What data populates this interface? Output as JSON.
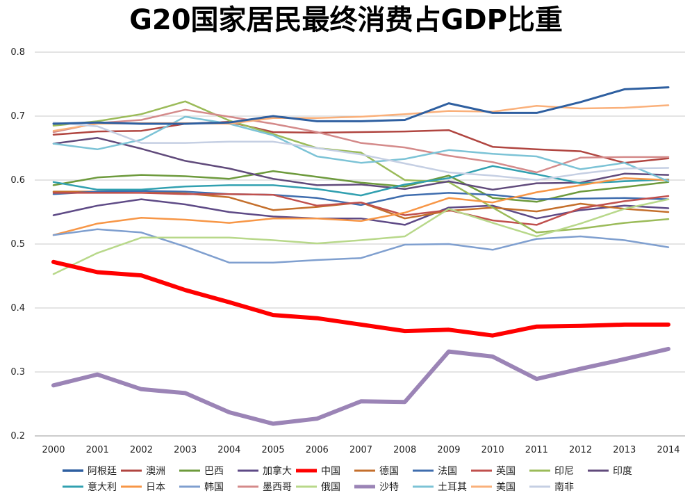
{
  "chart_data": {
    "type": "line",
    "title": "G20国家居民最终消费占GDP比重",
    "xlabel": "",
    "ylabel": "",
    "x": [
      "2000",
      "2001",
      "2002",
      "2003",
      "2004",
      "2005",
      "2006",
      "2007",
      "2008",
      "2009",
      "2010",
      "2011",
      "2012",
      "2013",
      "2014"
    ],
    "ylim": [
      0.2,
      0.8
    ],
    "yticks": [
      "0.2",
      "0.3",
      "0.4",
      "0.5",
      "0.6",
      "0.7",
      "0.8"
    ],
    "grid": "horizontal",
    "legend_position": "bottom",
    "series": [
      {
        "name": "阿根廷",
        "color": "#2E5FA0",
        "width": 3,
        "values": [
          0.688,
          0.69,
          0.688,
          0.688,
          0.69,
          0.7,
          0.692,
          0.692,
          0.694,
          0.72,
          0.705,
          0.705,
          0.722,
          0.742,
          0.745
        ]
      },
      {
        "name": "澳洲",
        "color": "#B04540",
        "width": 2.5,
        "values": [
          0.671,
          0.676,
          0.677,
          0.688,
          0.691,
          0.675,
          0.674,
          0.675,
          0.676,
          0.678,
          0.652,
          0.648,
          0.645,
          0.627,
          0.634
        ]
      },
      {
        "name": "巴西",
        "color": "#6D9A3C",
        "width": 2.5,
        "values": [
          0.592,
          0.604,
          0.608,
          0.606,
          0.602,
          0.614,
          0.605,
          0.596,
          0.59,
          0.607,
          0.572,
          0.566,
          0.582,
          0.589,
          0.597
        ]
      },
      {
        "name": "加拿大",
        "color": "#5E4A86",
        "width": 2.5,
        "values": [
          0.545,
          0.56,
          0.57,
          0.562,
          0.55,
          0.543,
          0.54,
          0.54,
          0.53,
          0.557,
          0.56,
          0.54,
          0.553,
          0.56,
          0.556
        ]
      },
      {
        "name": "中国",
        "color": "#FF0000",
        "width": 6,
        "values": [
          0.472,
          0.456,
          0.451,
          0.428,
          0.409,
          0.389,
          0.384,
          0.374,
          0.364,
          0.366,
          0.357,
          0.371,
          0.372,
          0.374,
          0.374
        ]
      },
      {
        "name": "德国",
        "color": "#C46F2C",
        "width": 2.5,
        "values": [
          0.582,
          0.582,
          0.583,
          0.579,
          0.573,
          0.553,
          0.558,
          0.565,
          0.54,
          0.552,
          0.557,
          0.551,
          0.563,
          0.555,
          0.55
        ]
      },
      {
        "name": "法国",
        "color": "#3F6DAE",
        "width": 2.5,
        "values": [
          0.578,
          0.582,
          0.583,
          0.582,
          0.578,
          0.577,
          0.572,
          0.561,
          0.576,
          0.58,
          0.577,
          0.57,
          0.571,
          0.572,
          0.57
        ]
      },
      {
        "name": "英国",
        "color": "#C0504D",
        "width": 2.5,
        "values": [
          0.58,
          0.58,
          0.58,
          0.578,
          0.578,
          0.577,
          0.56,
          0.565,
          0.545,
          0.553,
          0.537,
          0.53,
          0.556,
          0.567,
          0.575
        ]
      },
      {
        "name": "印尼",
        "color": "#9BBB59",
        "width": 2.5,
        "values": [
          0.685,
          0.692,
          0.703,
          0.723,
          0.693,
          0.672,
          0.65,
          0.643,
          0.6,
          0.597,
          0.557,
          0.518,
          0.524,
          0.533,
          0.539
        ]
      },
      {
        "name": "印度",
        "color": "#604A7B",
        "width": 2.5,
        "values": [
          0.657,
          0.666,
          0.649,
          0.63,
          0.618,
          0.602,
          0.592,
          0.593,
          0.586,
          0.598,
          0.585,
          0.595,
          0.596,
          0.61,
          0.608
        ]
      },
      {
        "name": "意大利",
        "color": "#31A0B0",
        "width": 2.5,
        "values": [
          0.597,
          0.585,
          0.585,
          0.59,
          0.592,
          0.592,
          0.586,
          0.576,
          0.593,
          0.603,
          0.622,
          0.609,
          0.595,
          0.598,
          0.601
        ]
      },
      {
        "name": "日本",
        "color": "#F79646",
        "width": 2.5,
        "values": [
          0.514,
          0.532,
          0.541,
          0.538,
          0.533,
          0.54,
          0.54,
          0.536,
          0.549,
          0.572,
          0.565,
          0.581,
          0.592,
          0.603,
          0.6
        ]
      },
      {
        "name": "韩国",
        "color": "#7F9FCF",
        "width": 2.5,
        "values": [
          0.514,
          0.523,
          0.518,
          0.496,
          0.471,
          0.471,
          0.475,
          0.478,
          0.499,
          0.5,
          0.491,
          0.508,
          0.512,
          0.506,
          0.495
        ]
      },
      {
        "name": "墨西哥",
        "color": "#D48A8A",
        "width": 2.5,
        "values": [
          0.675,
          0.689,
          0.694,
          0.71,
          0.699,
          0.688,
          0.675,
          0.658,
          0.651,
          0.638,
          0.628,
          0.612,
          0.635,
          0.636,
          0.636
        ]
      },
      {
        "name": "俄国",
        "color": "#B8D88A",
        "width": 2.5,
        "values": [
          0.453,
          0.486,
          0.51,
          0.51,
          0.51,
          0.506,
          0.501,
          0.506,
          0.512,
          0.555,
          0.533,
          0.512,
          0.532,
          0.555,
          0.57
        ]
      },
      {
        "name": "沙特",
        "color": "#9B84B6",
        "width": 6,
        "values": [
          0.279,
          0.296,
          0.273,
          0.267,
          0.237,
          0.219,
          0.227,
          0.254,
          0.253,
          0.332,
          0.324,
          0.289,
          0.305,
          0.32,
          0.336
        ]
      },
      {
        "name": "土耳其",
        "color": "#7CC3D6",
        "width": 2.5,
        "values": [
          0.657,
          0.648,
          0.663,
          0.699,
          0.688,
          0.67,
          0.637,
          0.627,
          0.633,
          0.647,
          0.641,
          0.637,
          0.617,
          0.627,
          0.598
        ]
      },
      {
        "name": "美国",
        "color": "#FAB07A",
        "width": 2.5,
        "values": [
          0.677,
          0.688,
          0.689,
          0.689,
          0.688,
          0.697,
          0.697,
          0.699,
          0.703,
          0.708,
          0.707,
          0.716,
          0.712,
          0.713,
          0.717
        ]
      },
      {
        "name": "南非",
        "color": "#C5CFE3",
        "width": 2.5,
        "values": [
          0.69,
          0.684,
          0.658,
          0.658,
          0.66,
          0.66,
          0.65,
          0.64,
          0.626,
          0.612,
          0.607,
          0.6,
          0.61,
          0.618,
          0.619
        ]
      }
    ]
  }
}
